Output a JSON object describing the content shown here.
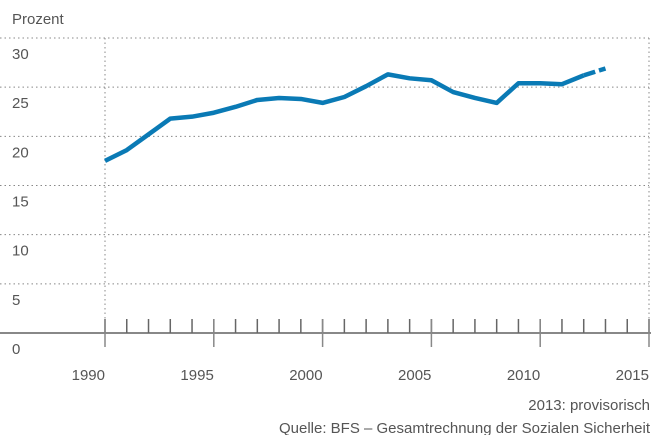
{
  "chart_data": {
    "type": "line",
    "y_unit_label": "Prozent",
    "x": [
      1990,
      1991,
      1992,
      1993,
      1994,
      1995,
      1996,
      1997,
      1998,
      1999,
      2000,
      2001,
      2002,
      2003,
      2004,
      2005,
      2006,
      2007,
      2008,
      2009,
      2010,
      2011,
      2012,
      2013
    ],
    "series": [
      {
        "color": "#0a7ab5",
        "values": [
          17.5,
          18.6,
          20.2,
          21.8,
          22.0,
          22.4,
          23.0,
          23.7,
          23.9,
          23.8,
          23.4,
          24.0,
          25.1,
          26.3,
          25.9,
          25.7,
          24.5,
          23.9,
          23.4,
          25.4,
          25.4,
          25.3,
          26.2,
          26.9
        ]
      }
    ],
    "dash_from_x": 2012,
    "xlim": [
      1990,
      2015
    ],
    "xticks": [
      1990,
      1995,
      2000,
      2005,
      2010,
      2015
    ],
    "xminorticks": [
      1990,
      1991,
      1992,
      1993,
      1994,
      1995,
      1996,
      1997,
      1998,
      1999,
      2000,
      2001,
      2002,
      2003,
      2004,
      2005,
      2006,
      2007,
      2008,
      2009,
      2010,
      2011,
      2012,
      2013,
      2014,
      2015
    ],
    "ylim": [
      0,
      30
    ],
    "yticks": [
      0,
      5,
      10,
      15,
      20,
      25,
      30
    ],
    "grid": true,
    "notes": [
      "2013: provisorisch",
      "Quelle: BFS – Gesamtrechnung der Sozialen Sicherheit"
    ]
  }
}
